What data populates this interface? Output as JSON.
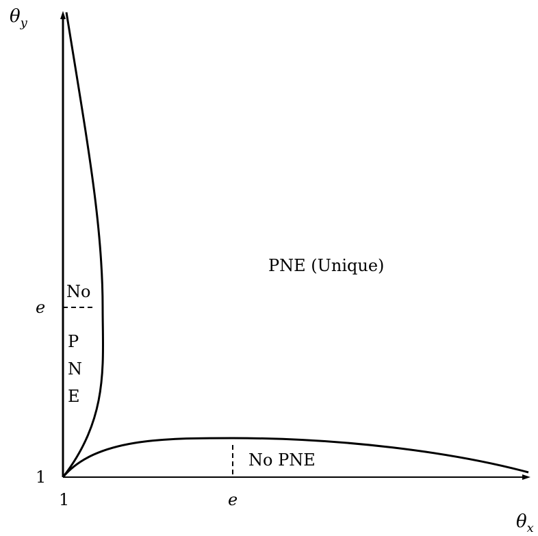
{
  "axes": {
    "y_label": "θ",
    "y_label_sub": "y",
    "x_label": "θ",
    "x_label_sub": "x",
    "origin_x_tick": "1",
    "origin_y_tick": "1",
    "x_e_tick": "e",
    "y_e_tick": "e"
  },
  "regions": {
    "upper_right": "PNE (Unique)",
    "left_no": "No",
    "left_vertical": [
      "P",
      "N",
      "E"
    ],
    "bottom": "No PNE"
  },
  "colors": {
    "ink": "#000000",
    "background": "#ffffff"
  }
}
